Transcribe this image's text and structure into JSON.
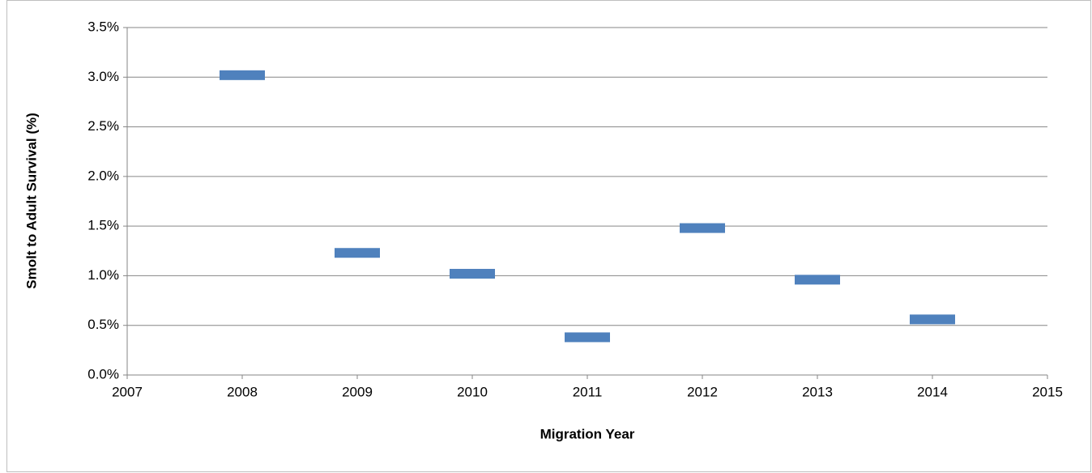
{
  "chart_data": {
    "type": "scatter",
    "x_label": "Migration Year",
    "y_label": "Smolt to Adult Survival (%)",
    "x": [
      2008,
      2009,
      2010,
      2011,
      2012,
      2013,
      2014
    ],
    "series": [
      {
        "name": "Smolt to Adult Survival",
        "color": "#4f81bd",
        "values": [
          3.02,
          1.23,
          1.02,
          0.38,
          1.48,
          0.96,
          0.56
        ]
      }
    ],
    "xlim": [
      2007,
      2015
    ],
    "xticks": [
      2007,
      2008,
      2009,
      2010,
      2011,
      2012,
      2013,
      2014,
      2015
    ],
    "ylim": [
      0,
      3.5
    ],
    "yticks": [
      {
        "value": 0,
        "label": "0.0%"
      },
      {
        "value": 0.5,
        "label": "0.5%"
      },
      {
        "value": 1,
        "label": "1.0%"
      },
      {
        "value": 1.5,
        "label": "1.5%"
      },
      {
        "value": 2,
        "label": "2.0%"
      },
      {
        "value": 2.5,
        "label": "2.5%"
      },
      {
        "value": 3,
        "label": "3.0%"
      },
      {
        "value": 3.5,
        "label": "3.5%"
      }
    ],
    "grid": true,
    "marker": "dash"
  }
}
